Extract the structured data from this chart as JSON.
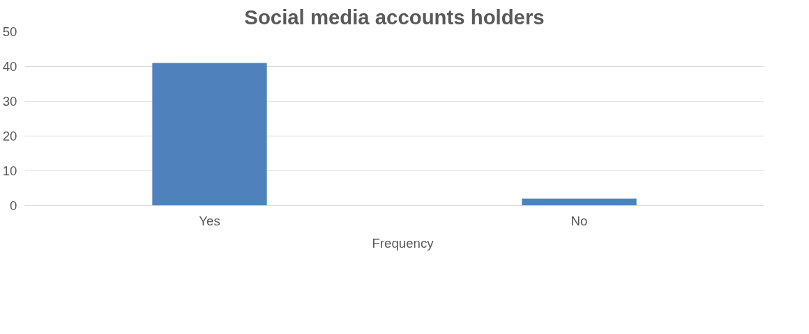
{
  "chart_data": {
    "type": "bar",
    "title": "Social media accounts holders",
    "categories": [
      "Yes",
      "No"
    ],
    "series": [
      {
        "name": "Frequency",
        "color": "#4f81bd",
        "values": [
          41,
          2
        ]
      }
    ],
    "ylim": [
      0,
      50
    ],
    "yticks": [
      0,
      10,
      20,
      30,
      40,
      50
    ],
    "grid": "y",
    "legend": "bottom"
  }
}
